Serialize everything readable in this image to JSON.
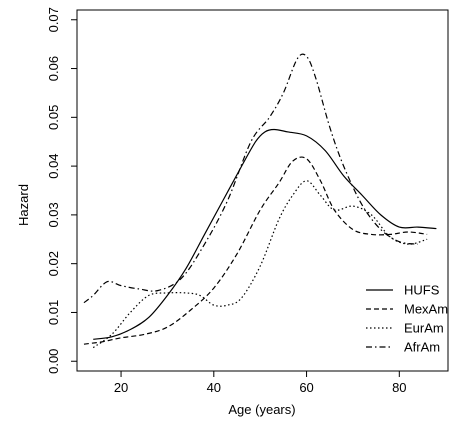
{
  "chart_data": {
    "type": "line",
    "title": "",
    "xlabel": "Age (years)",
    "ylabel": "Hazard",
    "xlim": [
      10.5,
      90.5
    ],
    "ylim": [
      -0.002,
      0.072
    ],
    "x_ticks": [
      20,
      40,
      60,
      80
    ],
    "x_tick_labels": [
      "20",
      "40",
      "60",
      "80"
    ],
    "y_ticks": [
      0.0,
      0.01,
      0.02,
      0.03,
      0.04,
      0.05,
      0.06,
      0.07
    ],
    "y_tick_labels": [
      "0.00",
      "0.01",
      "0.02",
      "0.03",
      "0.04",
      "0.05",
      "0.06",
      "0.07"
    ],
    "grid": false,
    "legend_position": "bottom-right",
    "series": [
      {
        "name": "HUFS",
        "dash": "solid",
        "points": [
          [
            14,
            0.0045
          ],
          [
            18,
            0.005
          ],
          [
            22,
            0.0065
          ],
          [
            26,
            0.009
          ],
          [
            30,
            0.0135
          ],
          [
            34,
            0.019
          ],
          [
            38,
            0.026
          ],
          [
            42,
            0.033
          ],
          [
            46,
            0.04
          ],
          [
            49,
            0.045
          ],
          [
            51,
            0.047
          ],
          [
            53,
            0.0475
          ],
          [
            56,
            0.047
          ],
          [
            60,
            0.0462
          ],
          [
            64,
            0.0432
          ],
          [
            68,
            0.038
          ],
          [
            72,
            0.034
          ],
          [
            76,
            0.03
          ],
          [
            80,
            0.0275
          ],
          [
            84,
            0.0275
          ],
          [
            88,
            0.0272
          ]
        ]
      },
      {
        "name": "MexAm",
        "dash": "dashed",
        "points": [
          [
            12,
            0.0035
          ],
          [
            16,
            0.004
          ],
          [
            20,
            0.0048
          ],
          [
            25,
            0.0055
          ],
          [
            30,
            0.007
          ],
          [
            35,
            0.0105
          ],
          [
            40,
            0.015
          ],
          [
            45,
            0.022
          ],
          [
            50,
            0.031
          ],
          [
            54,
            0.0365
          ],
          [
            57,
            0.041
          ],
          [
            60,
            0.0415
          ],
          [
            63,
            0.037
          ],
          [
            66,
            0.031
          ],
          [
            70,
            0.027
          ],
          [
            74,
            0.026
          ],
          [
            78,
            0.026
          ],
          [
            82,
            0.0265
          ],
          [
            86,
            0.026
          ]
        ]
      },
      {
        "name": "EurAm",
        "dash": "dotted",
        "points": [
          [
            14,
            0.0028
          ],
          [
            18,
            0.0055
          ],
          [
            22,
            0.01
          ],
          [
            26,
            0.0135
          ],
          [
            30,
            0.014
          ],
          [
            34,
            0.014
          ],
          [
            37,
            0.0135
          ],
          [
            40,
            0.0115
          ],
          [
            43,
            0.0115
          ],
          [
            46,
            0.013
          ],
          [
            50,
            0.0195
          ],
          [
            54,
            0.029
          ],
          [
            57,
            0.034
          ],
          [
            60,
            0.037
          ],
          [
            63,
            0.034
          ],
          [
            66,
            0.031
          ],
          [
            70,
            0.0318
          ],
          [
            74,
            0.03
          ],
          [
            78,
            0.0255
          ],
          [
            82,
            0.024
          ],
          [
            86,
            0.025
          ]
        ]
      },
      {
        "name": "AfrAm",
        "dash": "dashdot",
        "points": [
          [
            12,
            0.012
          ],
          [
            14,
            0.0135
          ],
          [
            17,
            0.0163
          ],
          [
            20,
            0.0155
          ],
          [
            24,
            0.0148
          ],
          [
            28,
            0.0145
          ],
          [
            33,
            0.017
          ],
          [
            38,
            0.024
          ],
          [
            43,
            0.033
          ],
          [
            48,
            0.045
          ],
          [
            52,
            0.05
          ],
          [
            55,
            0.055
          ],
          [
            58,
            0.062
          ],
          [
            60,
            0.0625
          ],
          [
            62,
            0.058
          ],
          [
            65,
            0.048
          ],
          [
            68,
            0.04
          ],
          [
            72,
            0.032
          ],
          [
            76,
            0.027
          ],
          [
            80,
            0.0245
          ],
          [
            84,
            0.024
          ]
        ]
      }
    ]
  }
}
